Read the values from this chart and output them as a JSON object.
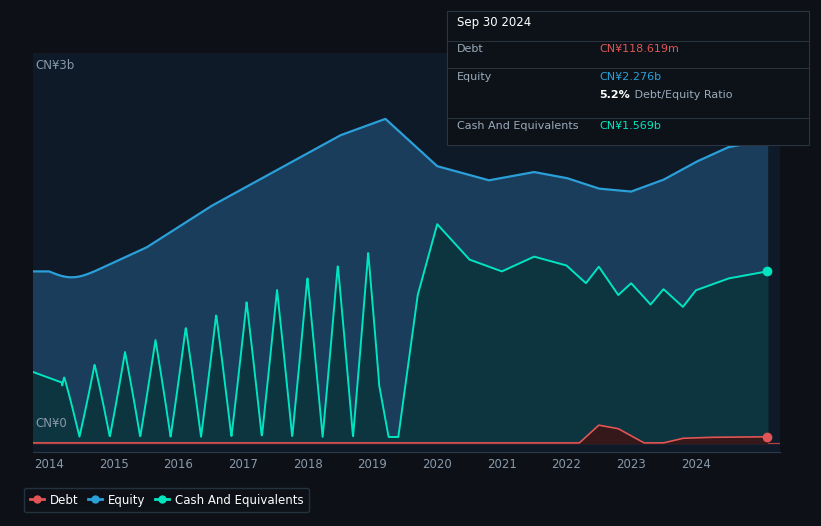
{
  "background_color": "#0d1117",
  "plot_bg_color": "#0e1a28",
  "title": "Sep 30 2024",
  "y_label_top": "CN¥3b",
  "y_label_bottom": "CN¥0",
  "x_ticks": [
    2014,
    2015,
    2016,
    2017,
    2018,
    2019,
    2020,
    2021,
    2022,
    2023,
    2024
  ],
  "debt_color": "#e05555",
  "equity_color": "#2b9fd8",
  "cash_color": "#00e5c0",
  "equity_fill_color": "#1a3d5c",
  "cash_fill_color": "#0d3540",
  "debt_fill_color": "#3a1515",
  "info_box": {
    "bg_color": "#0d1219",
    "border_color": "#2a3540",
    "title": "Sep 30 2024",
    "debt_label": "Debt",
    "debt_value": "CN¥118.619m",
    "debt_value_color": "#e05555",
    "equity_label": "Equity",
    "equity_value": "CN¥2.276b",
    "equity_value_color": "#2b9fd8",
    "ratio_bold": "5.2%",
    "ratio_rest": " Debt/Equity Ratio",
    "cash_label": "Cash And Equivalents",
    "cash_value": "CN¥1.569b",
    "cash_value_color": "#00e5c0"
  },
  "legend": [
    {
      "label": "Debt",
      "color": "#e05555"
    },
    {
      "label": "Equity",
      "color": "#2b9fd8"
    },
    {
      "label": "Cash And Equivalents",
      "color": "#00e5c0"
    }
  ],
  "ylim": [
    -0.08,
    3.3
  ],
  "grid_color": "#1e2d3d",
  "grid_alpha": 0.5
}
